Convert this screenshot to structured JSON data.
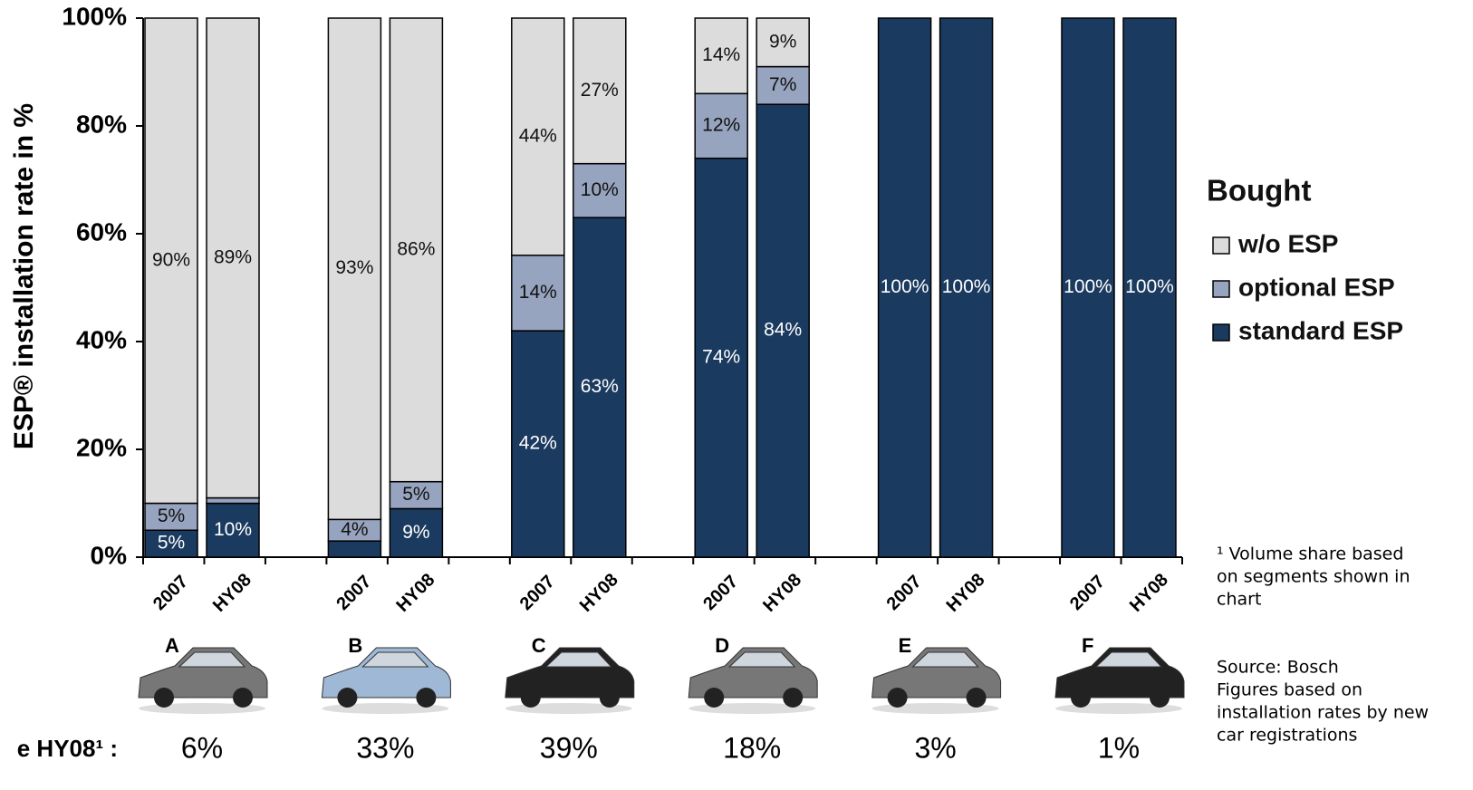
{
  "chart_data": {
    "type": "stacked_bar",
    "y_label": "ESP® installation rate in %",
    "categories": [
      "2007",
      "HY08",
      "2007",
      "HY08",
      "2007",
      "HY08",
      "2007",
      "HY08",
      "2007",
      "HY08",
      "2007",
      "HY08"
    ],
    "series": [
      {
        "name": "standard ESP",
        "color": "#1b3a5f",
        "values": [
          5,
          10,
          3,
          9,
          42,
          63,
          74,
          84,
          100,
          100,
          100,
          100
        ],
        "value_labels": [
          "5%",
          "10%",
          "3%",
          "9%",
          "42%",
          "63%",
          "74%",
          "84%",
          "100%",
          "100%",
          "100%",
          "100%"
        ]
      },
      {
        "name": "optional ESP",
        "color": "#97a4bf",
        "values": [
          5,
          1,
          4,
          5,
          14,
          10,
          12,
          7,
          0,
          0,
          0,
          0
        ],
        "value_labels": [
          "5%",
          "1%",
          "4%",
          "5%",
          "14%",
          "10%",
          "12%",
          "7%",
          null,
          null,
          null,
          null
        ]
      },
      {
        "name": "w/o ESP",
        "color": "#dcdcdc",
        "values": [
          90,
          89,
          93,
          86,
          44,
          27,
          14,
          9,
          0,
          0,
          0,
          0
        ],
        "value_labels": [
          "90%",
          "89%",
          "93%",
          "86%",
          "44%",
          "27%",
          "14%",
          "9%",
          null,
          null,
          null,
          null
        ]
      }
    ],
    "ylim": [
      0,
      100
    ],
    "yticks": [
      {
        "value": 0,
        "label": "0%"
      },
      {
        "value": 20,
        "label": "20%"
      },
      {
        "value": 40,
        "label": "40%"
      },
      {
        "value": 60,
        "label": "60%"
      },
      {
        "value": 80,
        "label": "80%"
      },
      {
        "value": 100,
        "label": "100%"
      }
    ],
    "legend_title": "Bought",
    "groups": [
      "A",
      "B",
      "C",
      "D",
      "E",
      "F"
    ],
    "share_title": "e HY08¹ :",
    "shares": [
      6,
      33,
      39,
      18,
      3,
      1
    ],
    "share_labels": [
      "6%",
      "33%",
      "39%",
      "18%",
      "3%",
      "1%"
    ],
    "footnote": [
      "¹ Volume share based",
      "on segments shown in",
      "chart"
    ],
    "source": [
      "Source: Bosch",
      "Figures based on",
      "installation rates by new",
      "car registrations"
    ]
  }
}
